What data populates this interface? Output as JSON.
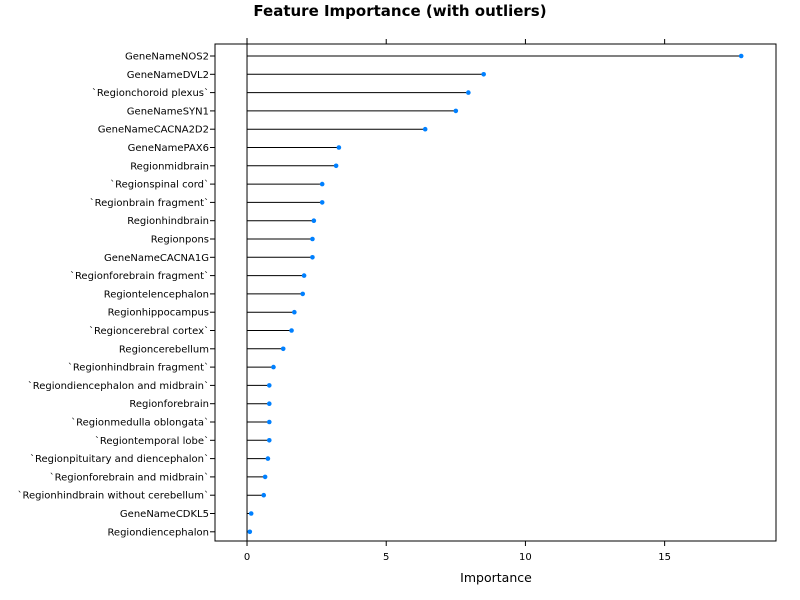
{
  "chart_data": {
    "type": "lollipop",
    "title": "Feature Importance (with outliers)",
    "xlabel": "Importance",
    "ylabel": "",
    "xlim": [
      -1.15,
      19
    ],
    "xticks": [
      0,
      5,
      10,
      15
    ],
    "grid": false,
    "point_color": "#0080ff",
    "categories": [
      "GeneNameNOS2",
      "GeneNameDVL2",
      "`Regionchoroid plexus`",
      "GeneNameSYN1",
      "GeneNameCACNA2D2",
      "GeneNamePAX6",
      "Regionmidbrain",
      "`Regionspinal cord`",
      "`Regionbrain fragment`",
      "Regionhindbrain",
      "Regionpons",
      "GeneNameCACNA1G",
      "`Regionforebrain fragment`",
      "Regiontelencephalon",
      "Regionhippocampus",
      "`Regioncerebral cortex`",
      "Regioncerebellum",
      "`Regionhindbrain fragment`",
      "`Regiondiencephalon and midbrain`",
      "Regionforebrain",
      "`Regionmedulla oblongata`",
      "`Regiontemporal lobe`",
      "`Regionpituitary and diencephalon`",
      "`Regionforebrain and midbrain`",
      "`Regionhindbrain without cerebellum`",
      "GeneNameCDKL5",
      "Regiondiencephalon"
    ],
    "values": [
      17.75,
      8.5,
      7.95,
      7.5,
      6.4,
      3.3,
      3.2,
      2.7,
      2.7,
      2.4,
      2.35,
      2.35,
      2.05,
      2.0,
      1.7,
      1.6,
      1.3,
      0.95,
      0.8,
      0.8,
      0.8,
      0.8,
      0.75,
      0.65,
      0.6,
      0.15,
      0.1
    ]
  }
}
